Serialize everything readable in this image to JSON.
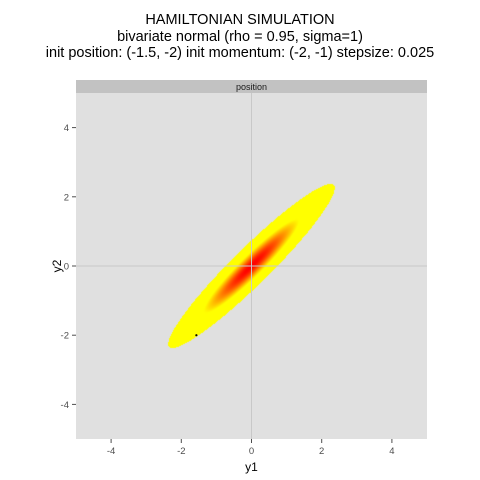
{
  "title": {
    "line1": "HAMILTONIAN SIMULATION",
    "line2": "bivariate normal (rho = 0.95, sigma=1)",
    "line3": "init position: (-1.5, -2)   init momentum: (-2, -1)  stepsize: 0.025"
  },
  "chart_data": {
    "type": "heatmap",
    "facet_label": "position",
    "xlabel": "y1",
    "ylabel": "y2",
    "xlim": [
      -5,
      5
    ],
    "ylim": [
      -5,
      5
    ],
    "xticks": [
      -4,
      -2,
      0,
      2,
      4
    ],
    "yticks": [
      -4,
      -2,
      0,
      2,
      4
    ],
    "grid": true,
    "density": {
      "distribution": "bivariate normal",
      "rho": 0.95,
      "sigma": 1
    },
    "color_scale": {
      "high": "#ff0000",
      "mid": "#ffff00",
      "low": "#e0e0e0"
    },
    "points": [
      {
        "x": -1.57,
        "y": -2.0
      }
    ]
  }
}
